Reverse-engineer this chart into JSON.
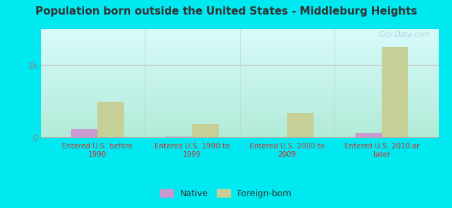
{
  "title": "Population born outside the United States - Middleburg Heights",
  "categories": [
    "Entered U.S. before\n1990",
    "Entered U.S. 1990 to\n1999",
    "Entered U.S. 2000 to\n2009",
    "Entered U.S. 2010 or\nlater"
  ],
  "native_values": [
    120,
    8,
    0,
    60
  ],
  "foreign_values": [
    490,
    185,
    340,
    1250
  ],
  "native_color": "#c999d0",
  "foreign_color": "#c5cf96",
  "bg_top": "#ffffff",
  "bg_bottom": "#d4ecd4",
  "outer_background": "#00e8f0",
  "title_color": "#333333",
  "label_color": "#cc3333",
  "ytick_color": "#888888",
  "bar_width": 0.28,
  "ylim_max": 1500,
  "watermark": "City-Data.com"
}
